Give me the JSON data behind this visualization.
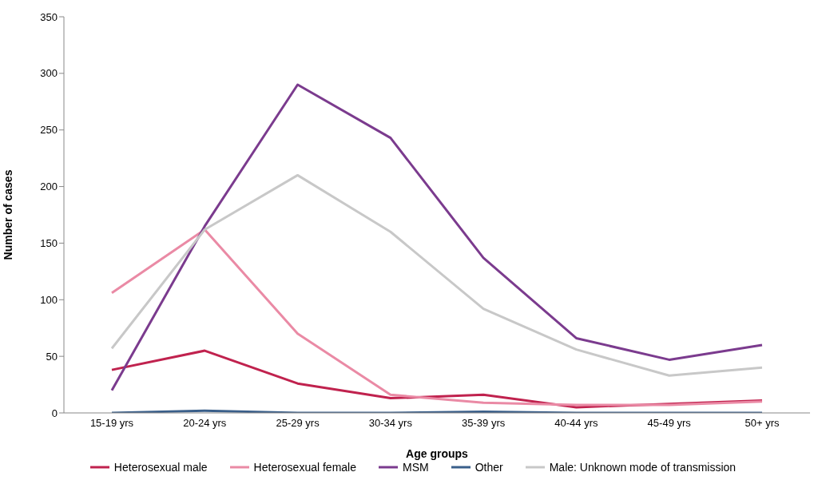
{
  "chart_data": {
    "type": "line",
    "xlabel": "Age groups",
    "ylabel": "Number of cases",
    "categories": [
      "15-19 yrs",
      "20-24 yrs",
      "25-29 yrs",
      "30-34 yrs",
      "35-39 yrs",
      "40-44 yrs",
      "45-49 yrs",
      "50+ yrs"
    ],
    "series": [
      {
        "name": "Heterosexual male",
        "color": "#c0224e",
        "values": [
          38,
          55,
          26,
          13,
          16,
          5,
          8,
          11
        ]
      },
      {
        "name": "Heterosexual female",
        "color": "#ea8aa5",
        "values": [
          106,
          162,
          70,
          16,
          9,
          7,
          7,
          10
        ]
      },
      {
        "name": "MSM",
        "color": "#7b3b8e",
        "values": [
          20,
          165,
          290,
          243,
          137,
          66,
          47,
          60
        ]
      },
      {
        "name": "Other",
        "color": "#3a5f8a",
        "values": [
          0,
          2,
          0,
          0,
          1,
          0,
          0,
          0
        ]
      },
      {
        "name": "Male: Unknown mode of transmission",
        "color": "#c8c8c8",
        "values": [
          57,
          162,
          210,
          160,
          92,
          56,
          33,
          40
        ]
      }
    ],
    "ylim": [
      0,
      350
    ],
    "yticks": [
      0,
      50,
      100,
      150,
      200,
      250,
      300,
      350
    ],
    "grid": false,
    "legend": "bottom",
    "marker": "none",
    "line_style": "solid"
  }
}
